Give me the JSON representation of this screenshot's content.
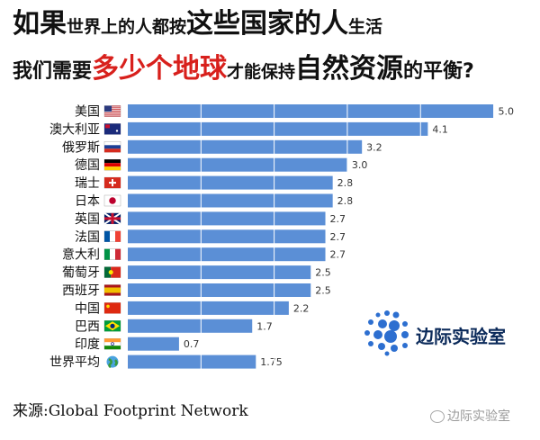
{
  "title": {
    "line1": [
      {
        "text": "如果",
        "size": "big",
        "color": "dark"
      },
      {
        "text": "世界上的人都按",
        "size": "sm",
        "color": "dark"
      },
      {
        "text": "这些国家的人",
        "size": "big",
        "color": "dark"
      },
      {
        "text": "生活",
        "size": "sm",
        "color": "dark"
      }
    ],
    "line2": [
      {
        "text": "我们需要",
        "size": "mid",
        "color": "dark"
      },
      {
        "text": "多少个地球",
        "size": "big",
        "color": "red"
      },
      {
        "text": "才能保持",
        "size": "sm",
        "color": "dark"
      },
      {
        "text": "自然资源",
        "size": "big",
        "color": "dark"
      },
      {
        "text": "的平衡?",
        "size": "mid",
        "color": "dark"
      }
    ]
  },
  "chart_data": {
    "type": "bar",
    "orientation": "horizontal",
    "categories": [
      "美国",
      "澳大利亚",
      "俄罗斯",
      "德国",
      "瑞士",
      "日本",
      "英国",
      "法国",
      "意大利",
      "葡萄牙",
      "西班牙",
      "中国",
      "巴西",
      "印度",
      "世界平均"
    ],
    "values": [
      5.0,
      4.1,
      3.2,
      3.0,
      2.8,
      2.8,
      2.7,
      2.7,
      2.7,
      2.5,
      2.5,
      2.2,
      1.7,
      0.7,
      1.75
    ],
    "value_labels": [
      "5.0",
      "4.1",
      "3.2",
      "3.0",
      "2.8",
      "2.8",
      "2.7",
      "2.7",
      "2.7",
      "2.5",
      "2.5",
      "2.2",
      "1.7",
      "0.7",
      "1.75"
    ],
    "flag_icons": [
      "us-flag-icon",
      "australia-flag-icon",
      "russia-flag-icon",
      "germany-flag-icon",
      "switzerland-flag-icon",
      "japan-flag-icon",
      "uk-flag-icon",
      "france-flag-icon",
      "italy-flag-icon",
      "portugal-flag-icon",
      "spain-flag-icon",
      "china-flag-icon",
      "brazil-flag-icon",
      "india-flag-icon",
      "globe-icon"
    ],
    "xlim": [
      0,
      5.35
    ],
    "bar_color": "#5b8fd6",
    "gridlines": "vertical-white",
    "xlabel": "",
    "ylabel": ""
  },
  "source": "来源:Global Footprint Network",
  "logo_text": "边际实验室",
  "watermark": "边际实验室",
  "colors": {
    "dark": "#111111",
    "red": "#d8201c",
    "bar": "#5b8fd6",
    "logo_dots": "#2d6fd0"
  }
}
